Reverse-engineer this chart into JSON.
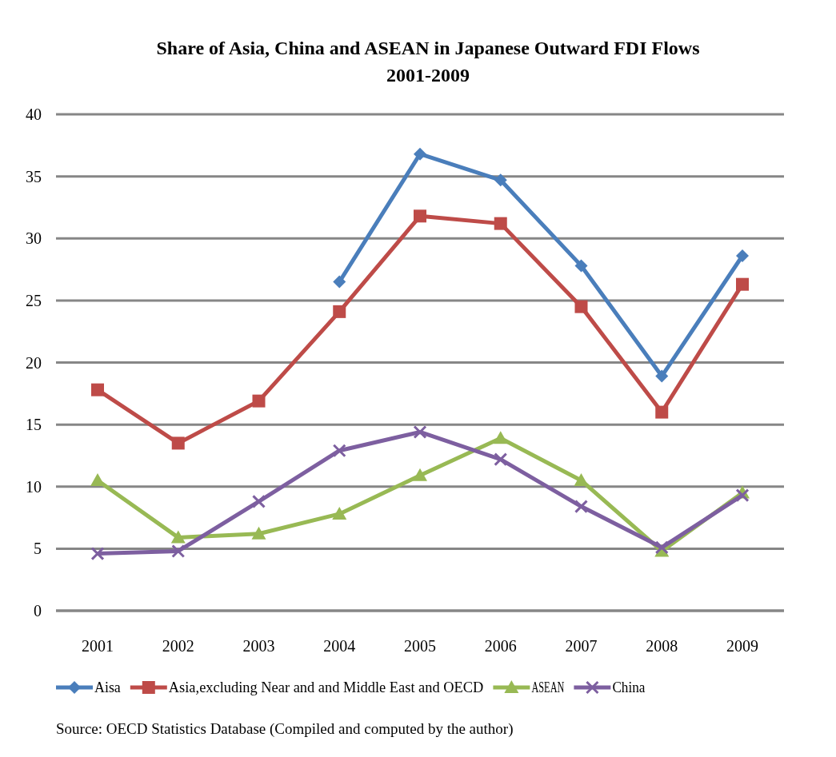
{
  "chart_data": {
    "type": "line",
    "title": "Share of Asia, China and ASEAN in Japanese Outward FDI Flows\n2001-2009",
    "categories": [
      "2001",
      "2002",
      "2003",
      "2004",
      "2005",
      "2006",
      "2007",
      "2008",
      "2009"
    ],
    "series": [
      {
        "name": "Aisa",
        "color": "#4a7ebb",
        "marker": "diamond",
        "values": [
          null,
          null,
          null,
          26.5,
          36.8,
          34.7,
          27.8,
          18.9,
          28.6
        ]
      },
      {
        "name": "Asia,excluding Near and and Middle East and OECD",
        "color": "#be4b48",
        "marker": "square",
        "values": [
          17.8,
          13.5,
          16.9,
          24.1,
          31.8,
          31.2,
          24.5,
          16.0,
          26.3
        ]
      },
      {
        "name": "ASEAN",
        "color": "#98b954",
        "marker": "triangle",
        "values": [
          10.5,
          5.9,
          6.2,
          7.8,
          10.9,
          13.9,
          10.5,
          4.8,
          9.5
        ]
      },
      {
        "name": "China",
        "color": "#7d5fa0",
        "marker": "cross",
        "values": [
          4.6,
          4.8,
          8.8,
          12.9,
          14.4,
          12.2,
          8.4,
          5.1,
          9.3
        ]
      }
    ],
    "ylim": [
      0,
      40
    ],
    "yticks": [
      0,
      5,
      10,
      15,
      20,
      25,
      30,
      35,
      40
    ],
    "grid": "y",
    "legend": "bottom",
    "annotations": [
      "Source: OECD Statistics Database (Compiled and computed by the author)"
    ]
  }
}
